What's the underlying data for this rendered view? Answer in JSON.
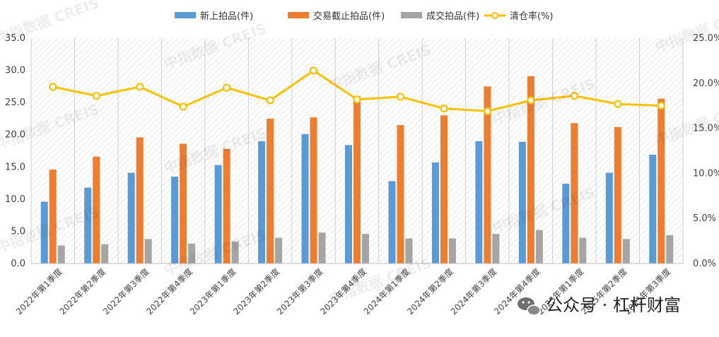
{
  "chart_data": {
    "type": "bar",
    "categories": [
      "2022年第1季度",
      "2022年第2季度",
      "2022年第3季度",
      "2022年第4季度",
      "2023年第1季度",
      "2023年第2季度",
      "2023年第3季度",
      "2023年第4季度",
      "2024年第1季度",
      "2024年第2季度",
      "2024年第3季度",
      "2024年第4季度",
      "2025年第1季度",
      "2025年第2季度",
      "2025年第3季度"
    ],
    "series": [
      {
        "name": "新上拍品(件)",
        "kind": "bar",
        "axis": "left",
        "color": "#5b9bd5",
        "values": [
          9.6,
          11.8,
          14.1,
          13.5,
          15.3,
          19.0,
          20.1,
          18.4,
          12.8,
          15.7,
          19.0,
          18.9,
          12.4,
          14.1,
          16.9
        ]
      },
      {
        "name": "交易截止拍品(件)",
        "kind": "bar",
        "axis": "left",
        "color": "#ed7d31",
        "values": [
          14.6,
          16.6,
          19.6,
          18.6,
          17.8,
          22.5,
          22.7,
          26.0,
          21.5,
          23.0,
          27.5,
          29.1,
          21.8,
          21.2,
          25.6
        ]
      },
      {
        "name": "成交拍品(件)",
        "kind": "bar",
        "axis": "left",
        "color": "#a5a5a5",
        "values": [
          2.8,
          3.0,
          3.8,
          3.1,
          3.4,
          4.0,
          4.8,
          4.6,
          3.9,
          3.9,
          4.6,
          5.2,
          4.0,
          3.8,
          4.4
        ]
      },
      {
        "name": "清仓率(%)",
        "kind": "line",
        "axis": "right",
        "color": "#ffc000",
        "values": [
          19.6,
          18.6,
          19.6,
          17.4,
          19.5,
          18.1,
          21.4,
          18.2,
          18.5,
          17.2,
          16.9,
          18.1,
          18.6,
          17.7,
          17.5
        ]
      }
    ],
    "y_left": {
      "min": 0,
      "max": 35,
      "ticks": [
        "0.0",
        "5.0",
        "10.0",
        "15.0",
        "20.0",
        "25.0",
        "30.0",
        "35.0"
      ]
    },
    "y_right": {
      "min": 0,
      "max": 25,
      "ticks": [
        "0.0%",
        "5.0%",
        "10.0%",
        "15.0%",
        "20.0%",
        "25.0%"
      ]
    },
    "legend_position": "top",
    "grid": false,
    "background": "diagonal-hatch"
  },
  "watermarks": [
    "中指数据 CREIS",
    "中指数据 CREIS",
    "中指数据 CREIS",
    "中指数据 CREIS",
    "中指数据 CREIS",
    "中指数据 CREIS",
    "中指数据 CREIS",
    "中指数据 CREIS",
    "中指数据 CREIS",
    "中指数据 CREIS",
    "中指数据 CREIS",
    "中指数据 CREIS"
  ],
  "wechat_mark": {
    "text": "公众号 · 杠杆财富",
    "icon": "wechat-icon"
  }
}
